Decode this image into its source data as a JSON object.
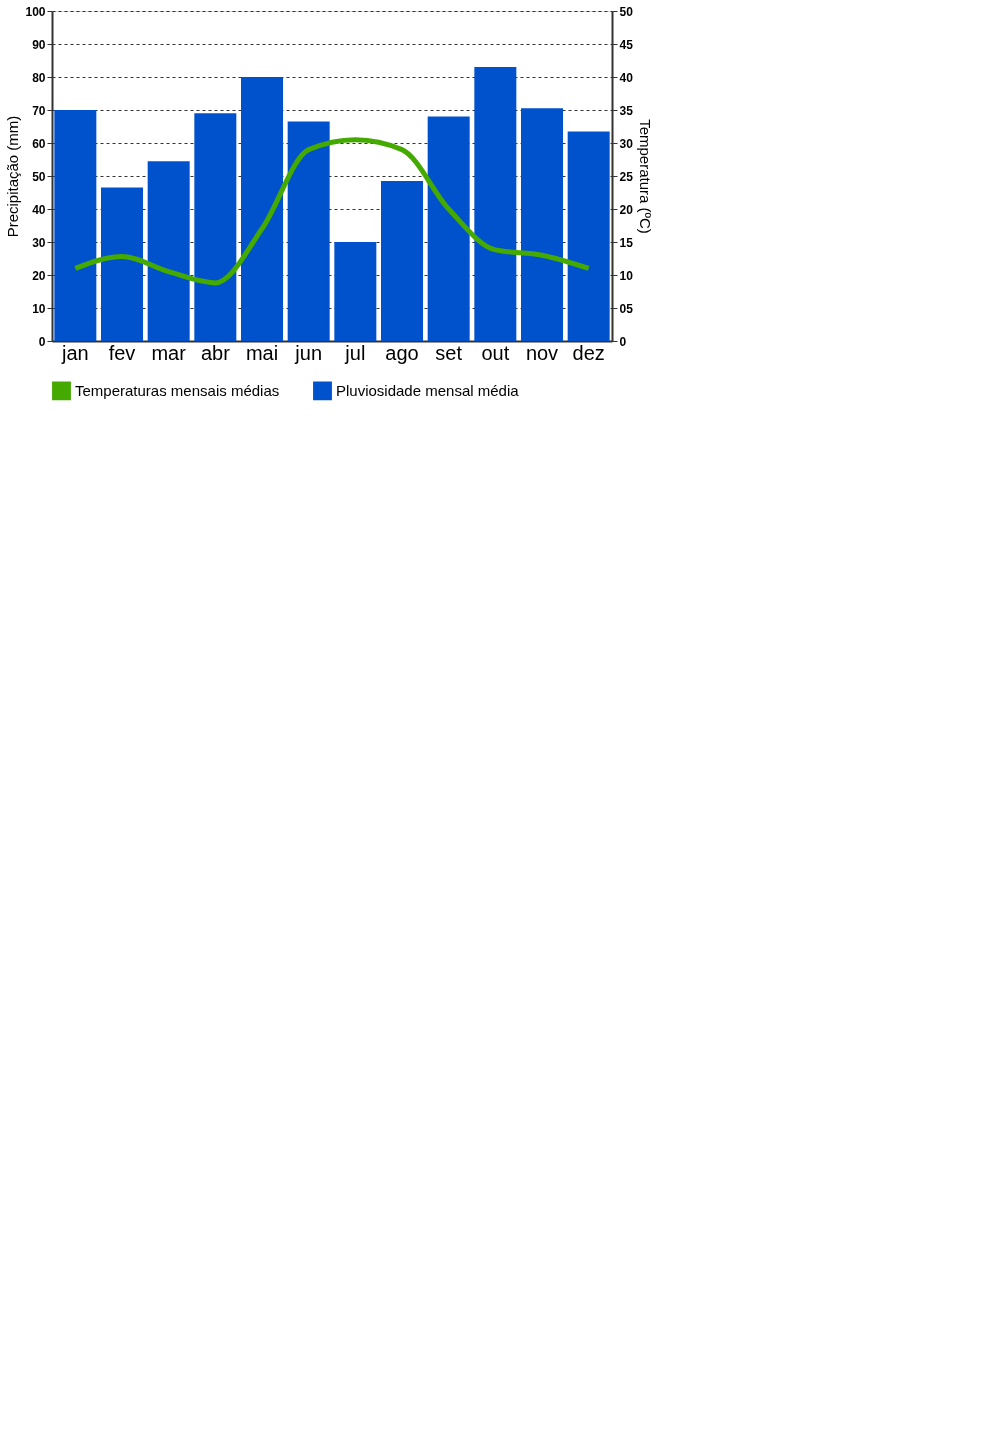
{
  "chart_data": {
    "type": "bar",
    "categories": [
      "jan",
      "fev",
      "mar",
      "abr",
      "mai",
      "jun",
      "jul",
      "ago",
      "set",
      "out",
      "nov",
      "dez"
    ],
    "ylabel": "Precipitação (mm)",
    "y2label": "Temperatura (ºC)",
    "series": [
      {
        "name": "Temperaturas mensais médias",
        "type": "line",
        "axis": "y2",
        "color": "#44aa00",
        "line_style": "solid",
        "values": [
          11,
          12.8,
          10.5,
          8.8,
          17,
          29,
          30.5,
          29,
          20,
          13.8,
          13,
          11
        ]
      },
      {
        "name": "Pluviosidade mensal média",
        "color": "#0052cc",
        "values": [
          70,
          46.5,
          54.5,
          69,
          80,
          66.5,
          30,
          48.5,
          68,
          83,
          70.5,
          63.5
        ]
      }
    ],
    "ylim": [
      0,
      100
    ],
    "yticks": [
      0,
      10,
      20,
      30,
      40,
      50,
      60,
      70,
      80,
      90,
      100
    ],
    "y2lim": [
      0,
      50
    ],
    "y2ticks": [
      0,
      {
        "value": 5,
        "label": "05"
      },
      10,
      15,
      20,
      25,
      30,
      35,
      40,
      45,
      50
    ],
    "grid": "y",
    "legend": "bottom",
    "marker": "none"
  }
}
